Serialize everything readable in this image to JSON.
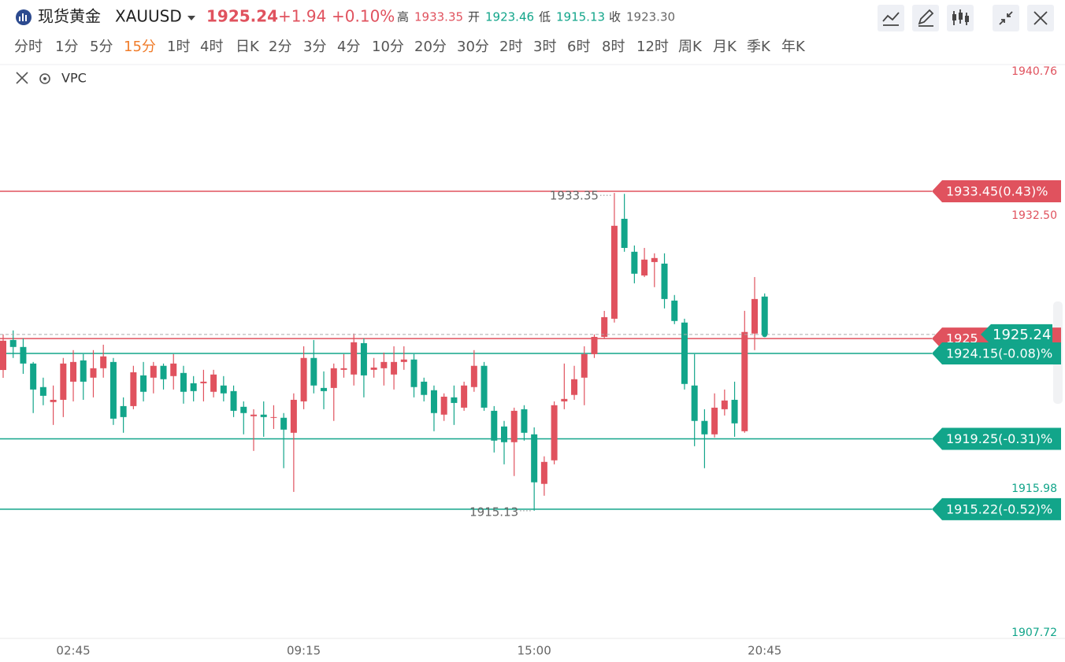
{
  "header": {
    "name": "现货黄金",
    "symbol": "XAUUSD",
    "price": "1925.24",
    "change": "+1.94",
    "change_pct": "+0.10%",
    "stats": [
      {
        "label": "高",
        "value": "1933.35"
      },
      {
        "label": "开",
        "value": "1923.46"
      },
      {
        "label": "低",
        "value": "1915.13"
      },
      {
        "label": "收",
        "value": "1923.30"
      }
    ]
  },
  "timeframes": [
    "分时",
    "1分",
    "5分",
    "15分",
    "1时",
    "4时",
    "日K",
    "2分",
    "3分",
    "4分",
    "10分",
    "20分",
    "30分",
    "2时",
    "3时",
    "6时",
    "8时",
    "12时",
    "周K",
    "月K",
    "季K",
    "年K"
  ],
  "active_timeframe": 3,
  "indicator": "VPC",
  "chart_data": {
    "type": "candlestick",
    "categories": [
      null,
      null,
      null,
      null,
      null,
      null,
      null,
      "02:45",
      null,
      null,
      null,
      null,
      null,
      null,
      null,
      null,
      null,
      null,
      null,
      null,
      null,
      null,
      null,
      null,
      null,
      null,
      null,
      null,
      null,
      null,
      "09:15",
      null,
      null,
      null,
      null,
      null,
      null,
      null,
      null,
      null,
      null,
      null,
      null,
      null,
      null,
      null,
      null,
      null,
      null,
      null,
      null,
      null,
      null,
      "15:00",
      null,
      null,
      null,
      null,
      null,
      null,
      null,
      null,
      null,
      null,
      null,
      null,
      null,
      null,
      null,
      null,
      null,
      null,
      null,
      null,
      null,
      null,
      "20:45"
    ],
    "open": [
      1923.2,
      1924.92,
      1924.52,
      1923.57,
      1922.22,
      1921.36,
      1921.49,
      1922.53,
      1923.75,
      1922.76,
      1923.3,
      1923.66,
      1921.13,
      1921.13,
      1922.89,
      1922.76,
      1923.44,
      1922.85,
      1923.03,
      1922.44,
      1922.44,
      1921.95,
      1922.31,
      1921.99,
      1921.09,
      1920.55,
      1920.64,
      1920.46,
      1920.46,
      1919.6,
      1921.4,
      1923.89,
      1922.17,
      1922.17,
      1923.21,
      1922.94,
      1924.74,
      1923.21,
      1923.3,
      1922.94,
      1923.66,
      1923.8,
      1922.53,
      1922.04,
      1920.64,
      1921.63,
      1921.04,
      1922.22,
      1923.44,
      1920.86,
      1919.96,
      1919.06,
      1920.95,
      1919.51,
      1916.67,
      1918.02,
      1921.4,
      1921.77,
      1922.76,
      1924.11,
      1925.1,
      1926.14,
      1931.87,
      1929.98,
      1928.62,
      1929.39,
      1929.3,
      1927.18,
      1925.92,
      1922.31,
      1920.28,
      1919.51,
      1920.95,
      1921.49,
      1919.69,
      1925.29,
      1927.41
    ],
    "high": [
      1925.24,
      1925.47,
      1925.01,
      1923.66,
      1922.76,
      1922.31,
      1923.89,
      1924.34,
      1924.11,
      1924.34,
      1924.65,
      1923.89,
      1921.63,
      1923.44,
      1923.66,
      1923.66,
      1923.57,
      1924.11,
      1923.44,
      1922.85,
      1923.21,
      1923.21,
      1922.85,
      1922.31,
      1921.4,
      1920.95,
      1921.4,
      1921.18,
      1920.73,
      1921.86,
      1924.56,
      1924.92,
      1923.12,
      1923.57,
      1924.11,
      1925.29,
      1925.01,
      1923.89,
      1924.2,
      1924.56,
      1924.56,
      1924.11,
      1922.76,
      1922.31,
      1921.86,
      1922.31,
      1922.53,
      1924.34,
      1923.66,
      1921.13,
      1920.28,
      1921.04,
      1921.18,
      1919.91,
      1918.25,
      1921.4,
      1923.57,
      1923.44,
      1924.56,
      1925.24,
      1926.59,
      1933.35,
      1933.3,
      1930.34,
      1930.2,
      1929.89,
      1929.89,
      1927.5,
      1926.14,
      1924.11,
      1920.95,
      1921.86,
      1922.08,
      1922.53,
      1926.59,
      1928.53,
      1927.59
    ],
    "low": [
      1922.75,
      1923.89,
      1922.98,
      1920.73,
      1921.18,
      1920.05,
      1920.5,
      1921.4,
      1921.49,
      1921.63,
      1922.76,
      1920.05,
      1919.6,
      1920.95,
      1921.4,
      1921.86,
      1922.08,
      1922.08,
      1921.27,
      1921.4,
      1921.4,
      1921.63,
      1921.4,
      1920.5,
      1919.51,
      1918.56,
      1919.37,
      1919.82,
      1917.57,
      1916.21,
      1920.95,
      1921.86,
      1920.95,
      1920.28,
      1922.76,
      1922.31,
      1921.63,
      1922.76,
      1922.31,
      1922.08,
      1923.21,
      1921.63,
      1921.4,
      1919.69,
      1920.28,
      1920.05,
      1920.86,
      1921.95,
      1920.86,
      1918.47,
      1917.79,
      1917.12,
      1919.15,
      1915.13,
      1915.99,
      1917.79,
      1920.95,
      1921.49,
      1921.18,
      1923.89,
      1925.01,
      1925.92,
      1929.98,
      1928.17,
      1928.53,
      1927.95,
      1926.73,
      1925.83,
      1922.08,
      1918.83,
      1917.57,
      1919.33,
      1920.59,
      1919.37,
      1919.6,
      1924.34,
      1925.1
    ],
    "close": [
      1924.88,
      1924.52,
      1923.57,
      1922.08,
      1921.72,
      1921.49,
      1923.57,
      1923.66,
      1922.53,
      1923.3,
      1923.98,
      1920.41,
      1920.5,
      1923.07,
      1921.95,
      1923.44,
      1922.67,
      1923.57,
      1921.95,
      1921.99,
      1922.53,
      1922.94,
      1921.86,
      1920.86,
      1920.73,
      1920.64,
      1920.5,
      1920.5,
      1919.78,
      1921.49,
      1923.89,
      1922.31,
      1921.99,
      1923.3,
      1923.3,
      1924.79,
      1922.89,
      1923.34,
      1923.66,
      1923.66,
      1923.8,
      1922.22,
      1921.77,
      1920.73,
      1921.67,
      1921.31,
      1922.31,
      1923.44,
      1921.04,
      1919.15,
      1919.06,
      1920.86,
      1919.6,
      1916.76,
      1917.93,
      1921.18,
      1921.54,
      1922.67,
      1924.11,
      1925.1,
      1926.23,
      1931.47,
      1930.2,
      1928.72,
      1929.53,
      1929.62,
      1927.27,
      1926.01,
      1922.4,
      1920.28,
      1919.51,
      1921.04,
      1921.45,
      1920.14,
      1925.38,
      1927.27,
      1925.24
    ],
    "up_color": "#e0525e",
    "down_color": "#12a58a",
    "ylim": [
      1907.72,
      1940.76
    ],
    "yticks": [
      1907.72,
      1915.98,
      {
        "value": 1932.5,
        "label": "1932.50"
      },
      1940.76
    ],
    "grid": false,
    "levels": [
      {
        "value": 1933.45,
        "label": "1933.45(0.43)%",
        "color": "#e0525e"
      },
      {
        "value": 1925,
        "color": "#e0525e"
      },
      {
        "value": 1924.15,
        "label": "1924.15(-0.08)%",
        "color": "#12a58a"
      },
      {
        "value": 1919.25,
        "label": "1919.25(-0.31)%",
        "color": "#12a58a"
      },
      {
        "value": 1915.22,
        "label": "1915.22(-0.52)%",
        "color": "#12a58a"
      }
    ],
    "last": {
      "value": 1925.24,
      "color": "#12a58a"
    }
  }
}
